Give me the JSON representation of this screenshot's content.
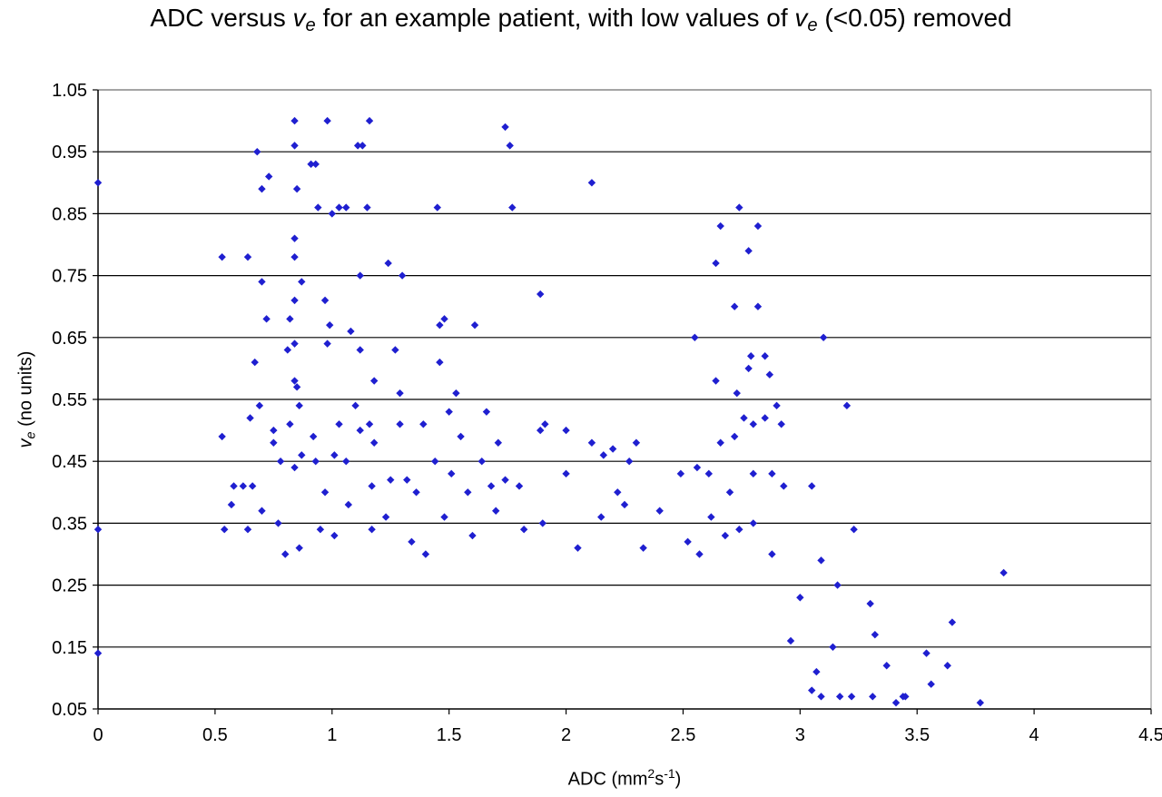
{
  "chart_data": {
    "type": "scatter",
    "title": {
      "prefix": "ADC versus ",
      "var": "v",
      "var_sub": "e",
      "middle": " for an example patient, with low values of ",
      "var2": "v",
      "var2_sub": "e",
      "suffix": " (<0.05) removed"
    },
    "xlabel": {
      "prefix": "ADC (mm",
      "sup1": "2",
      "mid": "s",
      "sup2": "-1",
      "suffix": ")"
    },
    "ylabel": {
      "var": "v",
      "var_sub": "e",
      "suffix": " (no units)"
    },
    "xlim": [
      0,
      4.5
    ],
    "ylim": [
      0.05,
      1.05
    ],
    "x_ticks": [
      "0",
      "0.5",
      "1",
      "1.5",
      "2",
      "2.5",
      "3",
      "3.5",
      "4",
      "4.5"
    ],
    "y_ticks": [
      "0.05",
      "0.15",
      "0.25",
      "0.35",
      "0.45",
      "0.55",
      "0.65",
      "0.75",
      "0.85",
      "0.95",
      "1.05"
    ],
    "horizontal_grid": true,
    "legend": "none",
    "marker": "diamond",
    "color": "#1f1fd0",
    "grid_color": "#000000",
    "points": [
      [
        0.0,
        0.9
      ],
      [
        0.0,
        0.34
      ],
      [
        0.0,
        0.14
      ],
      [
        0.68,
        0.95
      ],
      [
        0.84,
        1.0
      ],
      [
        0.98,
        1.0
      ],
      [
        1.16,
        1.0
      ],
      [
        1.74,
        0.99
      ],
      [
        1.76,
        0.96
      ],
      [
        0.84,
        0.96
      ],
      [
        1.11,
        0.96
      ],
      [
        1.13,
        0.96
      ],
      [
        0.7,
        0.89
      ],
      [
        0.73,
        0.91
      ],
      [
        0.85,
        0.89
      ],
      [
        0.91,
        0.93
      ],
      [
        0.93,
        0.93
      ],
      [
        2.11,
        0.9
      ],
      [
        0.94,
        0.86
      ],
      [
        1.0,
        0.85
      ],
      [
        1.03,
        0.86
      ],
      [
        1.06,
        0.86
      ],
      [
        1.15,
        0.86
      ],
      [
        1.45,
        0.86
      ],
      [
        1.77,
        0.86
      ],
      [
        2.74,
        0.86
      ],
      [
        0.53,
        0.78
      ],
      [
        0.64,
        0.78
      ],
      [
        0.84,
        0.81
      ],
      [
        0.84,
        0.78
      ],
      [
        0.87,
        0.74
      ],
      [
        0.7,
        0.74
      ],
      [
        1.12,
        0.75
      ],
      [
        1.24,
        0.77
      ],
      [
        1.3,
        0.75
      ],
      [
        2.64,
        0.77
      ],
      [
        2.78,
        0.79
      ],
      [
        2.82,
        0.83
      ],
      [
        2.66,
        0.83
      ],
      [
        0.72,
        0.68
      ],
      [
        0.84,
        0.71
      ],
      [
        0.97,
        0.71
      ],
      [
        0.99,
        0.67
      ],
      [
        1.08,
        0.66
      ],
      [
        1.89,
        0.72
      ],
      [
        1.46,
        0.67
      ],
      [
        1.48,
        0.68
      ],
      [
        1.61,
        0.67
      ],
      [
        0.82,
        0.68
      ],
      [
        2.72,
        0.7
      ],
      [
        2.82,
        0.7
      ],
      [
        0.67,
        0.61
      ],
      [
        0.81,
        0.63
      ],
      [
        0.84,
        0.64
      ],
      [
        0.98,
        0.64
      ],
      [
        1.12,
        0.63
      ],
      [
        1.27,
        0.63
      ],
      [
        1.46,
        0.61
      ],
      [
        2.55,
        0.65
      ],
      [
        3.1,
        0.65
      ],
      [
        2.64,
        0.58
      ],
      [
        2.78,
        0.6
      ],
      [
        2.79,
        0.62
      ],
      [
        2.85,
        0.62
      ],
      [
        2.87,
        0.59
      ],
      [
        0.84,
        0.58
      ],
      [
        0.85,
        0.57
      ],
      [
        1.18,
        0.58
      ],
      [
        1.29,
        0.56
      ],
      [
        1.53,
        0.56
      ],
      [
        2.73,
        0.56
      ],
      [
        3.2,
        0.54
      ],
      [
        0.53,
        0.49
      ],
      [
        0.65,
        0.52
      ],
      [
        0.69,
        0.54
      ],
      [
        0.75,
        0.5
      ],
      [
        0.82,
        0.51
      ],
      [
        0.86,
        0.54
      ],
      [
        0.92,
        0.49
      ],
      [
        1.03,
        0.51
      ],
      [
        1.1,
        0.54
      ],
      [
        1.12,
        0.5
      ],
      [
        1.16,
        0.51
      ],
      [
        1.18,
        0.48
      ],
      [
        1.29,
        0.51
      ],
      [
        1.39,
        0.51
      ],
      [
        1.5,
        0.53
      ],
      [
        1.55,
        0.49
      ],
      [
        1.66,
        0.53
      ],
      [
        1.71,
        0.48
      ],
      [
        1.89,
        0.5
      ],
      [
        1.91,
        0.51
      ],
      [
        2.0,
        0.5
      ],
      [
        2.11,
        0.48
      ],
      [
        2.3,
        0.48
      ],
      [
        2.76,
        0.52
      ],
      [
        2.8,
        0.51
      ],
      [
        2.85,
        0.52
      ],
      [
        2.9,
        0.54
      ],
      [
        2.92,
        0.51
      ],
      [
        0.58,
        0.41
      ],
      [
        0.62,
        0.41
      ],
      [
        0.66,
        0.41
      ],
      [
        0.75,
        0.48
      ],
      [
        0.78,
        0.45
      ],
      [
        0.84,
        0.44
      ],
      [
        0.87,
        0.46
      ],
      [
        0.93,
        0.45
      ],
      [
        0.97,
        0.4
      ],
      [
        1.01,
        0.46
      ],
      [
        1.06,
        0.45
      ],
      [
        1.17,
        0.41
      ],
      [
        1.25,
        0.42
      ],
      [
        1.32,
        0.42
      ],
      [
        1.36,
        0.4
      ],
      [
        1.44,
        0.45
      ],
      [
        1.51,
        0.43
      ],
      [
        1.58,
        0.4
      ],
      [
        1.64,
        0.45
      ],
      [
        1.68,
        0.41
      ],
      [
        1.74,
        0.42
      ],
      [
        1.8,
        0.41
      ],
      [
        2.0,
        0.43
      ],
      [
        2.16,
        0.46
      ],
      [
        2.2,
        0.47
      ],
      [
        2.22,
        0.4
      ],
      [
        2.27,
        0.45
      ],
      [
        2.49,
        0.43
      ],
      [
        2.56,
        0.44
      ],
      [
        2.61,
        0.43
      ],
      [
        2.7,
        0.4
      ],
      [
        2.8,
        0.43
      ],
      [
        2.88,
        0.43
      ],
      [
        2.93,
        0.41
      ],
      [
        3.05,
        0.41
      ],
      [
        2.66,
        0.48
      ],
      [
        2.72,
        0.49
      ],
      [
        0.54,
        0.34
      ],
      [
        0.57,
        0.38
      ],
      [
        0.64,
        0.34
      ],
      [
        0.7,
        0.37
      ],
      [
        0.77,
        0.35
      ],
      [
        0.8,
        0.3
      ],
      [
        0.86,
        0.31
      ],
      [
        0.95,
        0.34
      ],
      [
        1.01,
        0.33
      ],
      [
        1.07,
        0.38
      ],
      [
        1.17,
        0.34
      ],
      [
        1.23,
        0.36
      ],
      [
        1.34,
        0.32
      ],
      [
        1.4,
        0.3
      ],
      [
        1.48,
        0.36
      ],
      [
        1.6,
        0.33
      ],
      [
        1.7,
        0.37
      ],
      [
        1.82,
        0.34
      ],
      [
        1.9,
        0.35
      ],
      [
        2.05,
        0.31
      ],
      [
        2.15,
        0.36
      ],
      [
        2.25,
        0.38
      ],
      [
        2.33,
        0.31
      ],
      [
        2.4,
        0.37
      ],
      [
        2.52,
        0.32
      ],
      [
        2.57,
        0.3
      ],
      [
        2.62,
        0.36
      ],
      [
        2.68,
        0.33
      ],
      [
        2.74,
        0.34
      ],
      [
        2.8,
        0.35
      ],
      [
        2.88,
        0.3
      ],
      [
        3.23,
        0.34
      ],
      [
        3.09,
        0.29
      ],
      [
        3.16,
        0.25
      ],
      [
        3.87,
        0.27
      ],
      [
        3.65,
        0.19
      ],
      [
        3.77,
        0.06
      ],
      [
        3.45,
        0.07
      ],
      [
        3.31,
        0.07
      ],
      [
        3.41,
        0.06
      ],
      [
        3.54,
        0.14
      ],
      [
        3.56,
        0.09
      ],
      [
        3.37,
        0.12
      ],
      [
        3.32,
        0.17
      ],
      [
        3.3,
        0.22
      ],
      [
        3.14,
        0.15
      ],
      [
        3.22,
        0.07
      ],
      [
        3.63,
        0.12
      ],
      [
        3.05,
        0.08
      ],
      [
        2.96,
        0.16
      ],
      [
        3.07,
        0.11
      ],
      [
        3.0,
        0.23
      ],
      [
        3.09,
        0.07
      ],
      [
        3.17,
        0.07
      ],
      [
        3.44,
        0.07
      ]
    ]
  }
}
